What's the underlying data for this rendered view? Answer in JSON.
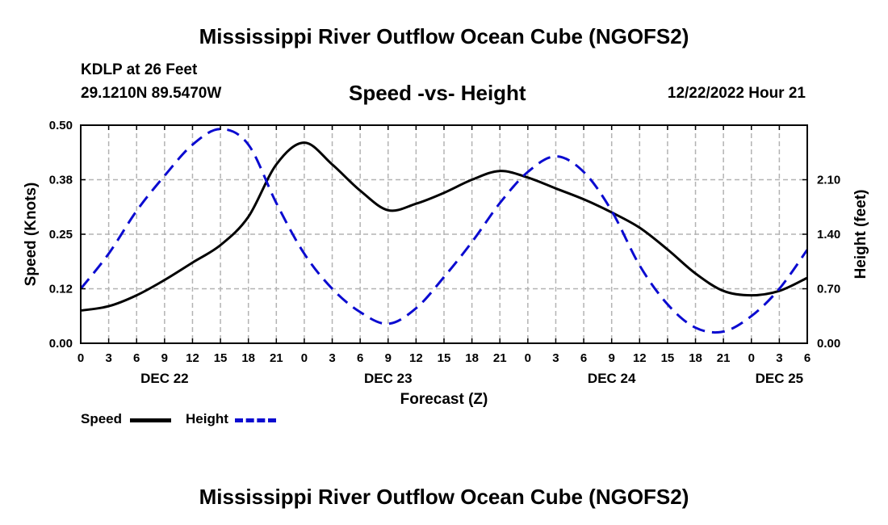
{
  "header": {
    "main_title": "Mississippi River Outflow Ocean Cube (NGOFS2)",
    "station": "KDLP at 26 Feet",
    "coordinates": "29.1210N  89.5470W",
    "subtitle": "Speed -vs- Height",
    "date": "12/22/2022 Hour 21"
  },
  "footer": {
    "title": "Mississippi River Outflow Ocean Cube (NGOFS2)"
  },
  "legend": {
    "speed_label": "Speed",
    "height_label": "Height"
  },
  "colors": {
    "speed": "#000000",
    "height": "#0b0bd0",
    "grid": "#b3b3b3"
  },
  "chart_data": {
    "type": "line",
    "xlabel": "Forecast (Z)",
    "ylabel_left": "Speed (Knots)",
    "ylabel_right": "Height (feet)",
    "x_unit": "forecast hours from DEC 22 00Z",
    "xlim": [
      0,
      78
    ],
    "ylim_left": [
      0,
      0.5
    ],
    "ylim_right": [
      0,
      2.8
    ],
    "x_tick_labels": [
      "0",
      "3",
      "6",
      "9",
      "12",
      "15",
      "18",
      "21",
      "0",
      "3",
      "6",
      "9",
      "12",
      "15",
      "18",
      "21",
      "0",
      "3",
      "6",
      "9",
      "12",
      "15",
      "18",
      "21",
      "0",
      "3",
      "6"
    ],
    "y_left_ticks": [
      {
        "value": 0.0,
        "label": "0.00"
      },
      {
        "value": 0.125,
        "label": "0.12"
      },
      {
        "value": 0.25,
        "label": "0.25"
      },
      {
        "value": 0.375,
        "label": "0.38"
      },
      {
        "value": 0.5,
        "label": "0.50"
      }
    ],
    "y_right_ticks": [
      {
        "value": 0.0,
        "label": "0.00"
      },
      {
        "value": 0.7,
        "label": "0.70"
      },
      {
        "value": 1.4,
        "label": "1.40"
      },
      {
        "value": 2.1,
        "label": "2.10"
      }
    ],
    "day_labels": [
      {
        "x": 9,
        "label": "DEC 22"
      },
      {
        "x": 33,
        "label": "DEC 23"
      },
      {
        "x": 57,
        "label": "DEC 24"
      },
      {
        "x": 75,
        "label": "DEC 25"
      }
    ],
    "series": [
      {
        "name": "Speed",
        "axis": "left",
        "style": "solid",
        "x": [
          0,
          3,
          6,
          9,
          12,
          15,
          18,
          21,
          24,
          27,
          30,
          33,
          36,
          39,
          42,
          45,
          48,
          51,
          54,
          57,
          60,
          63,
          66,
          69,
          72,
          75,
          78
        ],
        "y": [
          0.075,
          0.085,
          0.11,
          0.145,
          0.185,
          0.225,
          0.29,
          0.41,
          0.46,
          0.41,
          0.35,
          0.305,
          0.32,
          0.345,
          0.375,
          0.395,
          0.38,
          0.355,
          0.33,
          0.3,
          0.265,
          0.215,
          0.16,
          0.12,
          0.11,
          0.12,
          0.15
        ]
      },
      {
        "name": "Height",
        "axis": "right",
        "style": "dashed",
        "x": [
          0,
          3,
          6,
          9,
          12,
          15,
          18,
          21,
          24,
          27,
          30,
          33,
          36,
          39,
          42,
          45,
          48,
          51,
          54,
          57,
          60,
          63,
          66,
          69,
          72,
          75,
          78
        ],
        "y": [
          0.7,
          1.15,
          1.7,
          2.15,
          2.55,
          2.75,
          2.55,
          1.8,
          1.15,
          0.7,
          0.4,
          0.25,
          0.45,
          0.85,
          1.3,
          1.8,
          2.2,
          2.4,
          2.2,
          1.7,
          1.0,
          0.5,
          0.2,
          0.15,
          0.35,
          0.7,
          1.2
        ]
      }
    ]
  }
}
